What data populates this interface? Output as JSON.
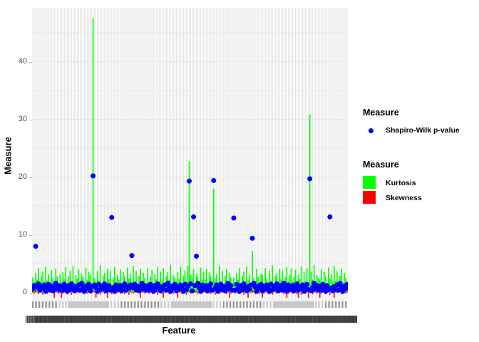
{
  "figure": {
    "background": "#ffffff",
    "grid_vertical_color": "#e3e3e3",
    "grid_horizontal_color": "#ececec",
    "axis_tick_label_color": "#4d4d4d",
    "x_axis_overlapped_label_bar_color": "#3e3e3e"
  },
  "legend_point": {
    "title": "Measure",
    "items": [
      {
        "label": "Shapiro-Wilk p-value",
        "color": "#0000ff",
        "marker": "circle"
      }
    ]
  },
  "legend_fill": {
    "title": "Measure",
    "items": [
      {
        "label": "Kurtosis",
        "color": "#00ff00"
      },
      {
        "label": "Skewness",
        "color": "#ff0000"
      }
    ]
  },
  "chart_data": {
    "type": "bar",
    "subtype": "bars-with-scatter-overlay",
    "title": "",
    "xlabel": "Feature",
    "ylabel": "Measure",
    "ylim": [
      -1.5,
      49.3
    ],
    "yticks": [
      0,
      10,
      20,
      30,
      40
    ],
    "ygrid": [
      0,
      5,
      10,
      15,
      20,
      25,
      30,
      35,
      40,
      45
    ],
    "grid": true,
    "legend_position": "right",
    "n_features": 220,
    "x_tick_labels_readable": false,
    "series": [
      {
        "name": "Kurtosis",
        "type": "bar",
        "color": "#00ff00",
        "values": [
          2.6,
          1.8,
          3.4,
          2.2,
          4.2,
          1.5,
          2.9,
          3.6,
          1.9,
          4.5,
          2.1,
          3.1,
          1.6,
          3.9,
          2.5,
          1.8,
          4.1,
          2.8,
          1.4,
          3.2,
          1.9,
          3.5,
          2.3,
          4.4,
          1.6,
          2.8,
          3.8,
          2.0,
          4.6,
          1.7,
          3.0,
          2.4,
          4.0,
          1.5,
          3.3,
          2.7,
          1.9,
          4.3,
          2.2,
          3.6,
          3.1,
          1.7,
          47.5,
          2.5,
          1.9,
          3.7,
          2.1,
          4.7,
          1.6,
          2.9,
          3.4,
          1.8,
          4.1,
          2.3,
          3.8,
          1.5,
          2.6,
          4.4,
          1.9,
          3.0,
          2.2,
          4.0,
          1.7,
          3.5,
          2.8,
          1.6,
          4.3,
          2.4,
          3.2,
          1.9,
          4.6,
          2.0,
          3.7,
          1.5,
          2.9,
          4.1,
          1.8,
          3.4,
          2.6,
          1.7,
          4.2,
          1.9,
          2.7,
          3.9,
          1.6,
          3.1,
          2.3,
          4.5,
          1.8,
          3.6,
          2.0,
          4.2,
          1.7,
          2.8,
          3.5,
          2.2,
          4.8,
          1.6,
          3.0,
          2.5,
          1.9,
          3.5,
          2.3,
          4.4,
          1.6,
          2.8,
          3.8,
          2.0,
          4.6,
          22.7,
          3.0,
          2.4,
          4.0,
          1.5,
          3.3,
          2.7,
          1.9,
          4.3,
          2.2,
          3.6,
          2.2,
          4.0,
          1.7,
          3.5,
          2.8,
          1.6,
          18.0,
          2.4,
          3.2,
          1.9,
          4.6,
          2.0,
          3.7,
          1.5,
          2.9,
          4.1,
          1.8,
          3.4,
          2.6,
          1.7,
          2.6,
          1.8,
          3.4,
          2.2,
          4.2,
          1.5,
          2.9,
          3.6,
          1.9,
          4.5,
          2.1,
          3.1,
          1.6,
          7.2,
          2.5,
          1.8,
          4.1,
          2.8,
          1.4,
          3.2,
          3.1,
          1.7,
          4.2,
          2.5,
          1.9,
          3.7,
          2.1,
          4.7,
          1.6,
          2.9,
          3.4,
          1.8,
          4.1,
          2.3,
          3.8,
          1.5,
          2.6,
          4.4,
          1.9,
          3.0,
          4.2,
          1.9,
          2.7,
          3.9,
          1.6,
          3.1,
          2.3,
          4.5,
          1.8,
          3.6,
          2.0,
          4.2,
          1.7,
          30.9,
          3.5,
          2.2,
          4.8,
          1.6,
          3.0,
          2.5,
          2.2,
          4.0,
          1.7,
          3.5,
          2.8,
          1.6,
          4.3,
          2.4,
          3.2,
          1.9,
          4.6,
          2.0,
          3.7,
          1.5,
          2.9,
          4.1,
          1.8,
          3.4,
          2.6,
          1.7
        ]
      },
      {
        "name": "Skewness",
        "type": "bar",
        "color": "#ff0000",
        "values": [
          0.4,
          -0.2,
          0.5,
          0.1,
          -0.3,
          0.6,
          0.2,
          -0.4,
          0.3,
          0.1,
          -0.2,
          0.5,
          -0.1,
          0.4,
          0.2,
          -0.9,
          0.6,
          0.1,
          -0.2,
          0.3,
          -0.9,
          -0.2,
          0.5,
          0.1,
          -0.3,
          0.6,
          0.2,
          -0.4,
          0.3,
          0.1,
          -0.2,
          0.5,
          -0.1,
          0.4,
          0.2,
          -0.3,
          0.6,
          0.1,
          -0.2,
          0.3,
          0.4,
          -0.2,
          0.5,
          0.1,
          -0.9,
          0.6,
          0.2,
          -0.4,
          0.3,
          0.1,
          -0.2,
          0.5,
          -0.9,
          0.4,
          0.2,
          -0.3,
          0.6,
          0.1,
          -0.2,
          0.3,
          0.4,
          -0.2,
          0.5,
          0.1,
          -0.3,
          0.6,
          0.2,
          -0.4,
          0.3,
          0.1,
          -0.2,
          0.5,
          -0.1,
          0.4,
          0.2,
          -0.9,
          0.6,
          0.1,
          -0.2,
          0.3,
          0.4,
          -0.2,
          0.5,
          0.1,
          -0.3,
          0.6,
          0.2,
          -0.4,
          0.3,
          0.1,
          -0.2,
          -0.9,
          -0.1,
          0.4,
          0.2,
          -0.3,
          0.6,
          0.1,
          -0.2,
          0.3,
          0.4,
          -0.9,
          0.5,
          0.1,
          -0.3,
          0.6,
          0.2,
          -0.4,
          0.3,
          0.1,
          -0.2,
          0.5,
          -0.1,
          0.4,
          0.2,
          -0.3,
          0.6,
          0.1,
          -0.2,
          0.3,
          0.4,
          -0.2,
          0.5,
          0.1,
          -0.3,
          0.6,
          0.2,
          -0.4,
          0.3,
          0.1,
          -0.2,
          0.5,
          -0.1,
          0.4,
          0.2,
          -0.3,
          0.6,
          -0.9,
          -0.2,
          0.3,
          0.4,
          -0.2,
          0.5,
          0.1,
          -0.3,
          0.6,
          0.2,
          -0.4,
          0.3,
          0.1,
          -0.9,
          0.5,
          -0.1,
          0.4,
          0.2,
          -0.3,
          0.6,
          0.1,
          -0.2,
          0.3,
          -0.9,
          -0.2,
          0.5,
          0.1,
          -0.3,
          0.6,
          0.2,
          -0.4,
          0.3,
          0.1,
          -0.2,
          0.5,
          -0.1,
          0.4,
          0.2,
          -0.3,
          0.6,
          -0.9,
          -0.2,
          0.3,
          0.4,
          -0.2,
          0.5,
          0.1,
          -0.3,
          -0.9,
          0.2,
          -0.4,
          0.3,
          0.1,
          -0.2,
          0.5,
          -0.9,
          0.4,
          0.2,
          -0.3,
          0.6,
          0.1,
          -0.2,
          0.3,
          -0.9,
          -0.2,
          0.5,
          0.1,
          -0.3,
          0.6,
          0.2,
          -0.4,
          0.3,
          0.1,
          -0.9,
          0.5,
          -0.1,
          0.4,
          0.2,
          -0.3,
          0.6,
          0.1,
          -0.2,
          0.3
        ]
      },
      {
        "name": "Shapiro-Wilk p-value",
        "type": "scatter",
        "color": "#0000ff",
        "values": [
          0.6,
          1.2,
          8.0,
          0.9,
          1.5,
          0.4,
          1.0,
          0.7,
          1.3,
          0.2,
          0.8,
          1.4,
          0.5,
          1.1,
          0.3,
          0.9,
          1.6,
          0.6,
          1.2,
          0.4,
          1.1,
          0.4,
          1.4,
          0.7,
          0.2,
          1.2,
          0.5,
          1.5,
          0.8,
          0.3,
          1.0,
          0.6,
          1.3,
          0.4,
          1.6,
          0.9,
          0.2,
          1.1,
          0.7,
          1.4,
          0.3,
          1.0,
          20.2,
          1.3,
          0.8,
          0.2,
          1.4,
          0.5,
          1.1,
          0.7,
          1.5,
          0.3,
          0.9,
          1.2,
          0.4,
          13.0,
          0.8,
          0.2,
          1.3,
          0.6,
          0.6,
          1.2,
          0.3,
          0.9,
          1.5,
          0.4,
          1.0,
          0.7,
          1.3,
          6.4,
          0.8,
          1.4,
          0.5,
          1.1,
          0.3,
          0.9,
          1.6,
          0.6,
          1.2,
          0.4,
          1.1,
          0.4,
          1.4,
          0.7,
          0.2,
          1.2,
          0.5,
          1.5,
          0.8,
          0.3,
          1.0,
          0.6,
          1.3,
          0.4,
          1.6,
          0.9,
          0.2,
          1.1,
          0.7,
          1.4,
          0.3,
          1.0,
          0.6,
          1.3,
          0.8,
          0.2,
          1.4,
          0.5,
          1.1,
          19.3,
          1.5,
          0.3,
          13.1,
          1.2,
          6.3,
          1.6,
          0.8,
          0.2,
          1.3,
          0.6,
          0.6,
          1.2,
          0.3,
          0.9,
          1.5,
          0.4,
          19.4,
          0.7,
          1.3,
          0.2,
          0.8,
          1.4,
          0.5,
          1.1,
          0.3,
          0.9,
          1.6,
          0.6,
          1.2,
          0.4,
          12.9,
          0.4,
          1.4,
          0.7,
          0.2,
          1.2,
          0.5,
          1.5,
          0.8,
          0.3,
          1.0,
          0.6,
          1.3,
          9.4,
          1.6,
          0.9,
          0.2,
          1.1,
          0.7,
          1.4,
          0.3,
          1.0,
          0.6,
          1.3,
          0.8,
          0.2,
          1.4,
          0.5,
          1.1,
          0.7,
          1.5,
          0.3,
          0.9,
          1.2,
          0.4,
          1.6,
          0.8,
          0.2,
          1.3,
          0.6,
          0.6,
          1.2,
          0.3,
          0.9,
          1.5,
          0.4,
          1.0,
          0.7,
          1.3,
          0.2,
          0.8,
          1.4,
          0.5,
          19.7,
          0.3,
          0.9,
          1.6,
          0.6,
          1.2,
          0.4,
          1.1,
          0.4,
          1.4,
          0.7,
          0.2,
          1.2,
          0.5,
          13.1,
          0.8,
          0.3,
          1.0,
          0.6,
          1.3,
          0.4,
          1.6,
          0.9,
          0.2,
          1.1,
          0.7,
          1.4
        ]
      }
    ]
  }
}
